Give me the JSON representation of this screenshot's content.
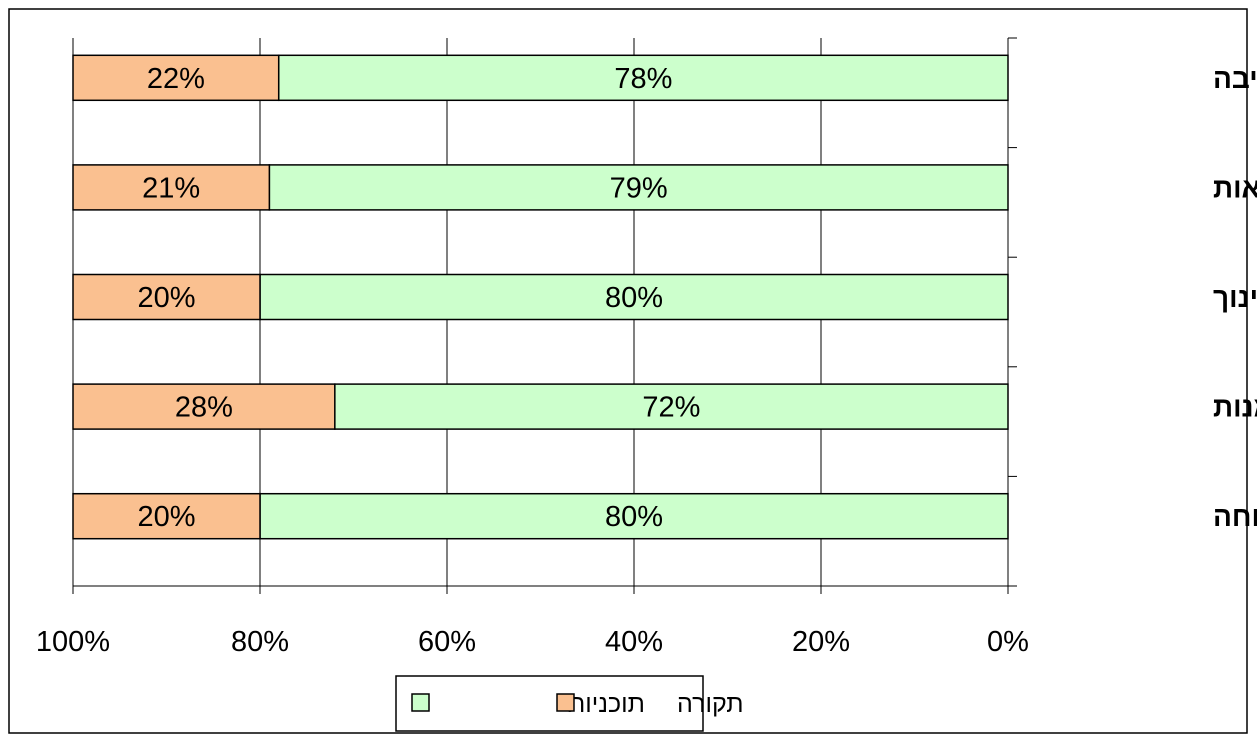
{
  "chart_data": {
    "type": "bar",
    "orientation": "horizontal",
    "stacked": "percent",
    "x_axis_reversed": true,
    "categories": [
      "טבע וסביבה",
      "בריאות",
      "חינוך",
      "תרבות ואמנות",
      "שירותי רווחה"
    ],
    "series": [
      {
        "name": "תוכניות",
        "values": [
          78,
          79,
          80,
          72,
          80
        ],
        "labels": [
          "78%",
          "79%",
          "80%",
          "72%",
          "80%"
        ],
        "color": "#CCFFCC"
      },
      {
        "name": "תקורה",
        "values": [
          22,
          21,
          20,
          28,
          20
        ],
        "labels": [
          "22%",
          "21%",
          "20%",
          "28%",
          "20%"
        ],
        "color": "#FAC090"
      }
    ],
    "xlim": [
      0,
      100
    ],
    "x_ticks": [
      {
        "value": 0,
        "label": "0%"
      },
      {
        "value": 20,
        "label": "20%"
      },
      {
        "value": 40,
        "label": "40%"
      },
      {
        "value": 60,
        "label": "60%"
      },
      {
        "value": 80,
        "label": "80%"
      },
      {
        "value": 100,
        "label": "100%"
      }
    ],
    "grid": true,
    "legend": {
      "position": "bottom",
      "entries": [
        "תקורה",
        "תוכניות"
      ]
    }
  }
}
